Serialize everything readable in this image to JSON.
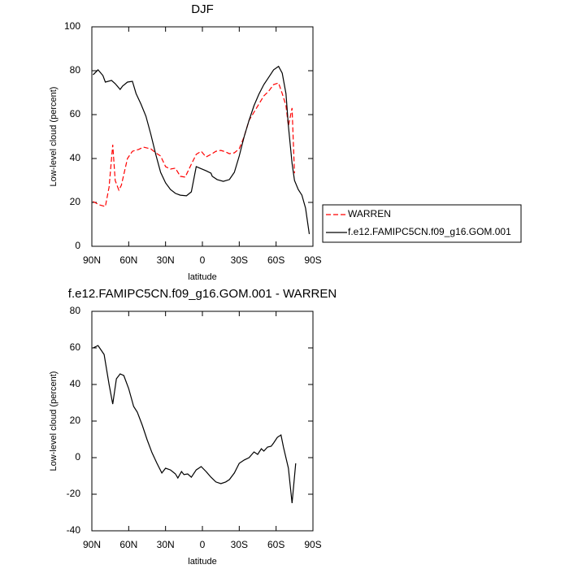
{
  "chart_data": [
    {
      "type": "line",
      "title": "DJF",
      "xlabel": "latitude",
      "ylabel": "Low-level cloud (percent)",
      "xlim": [
        90,
        -90
      ],
      "ylim": [
        0,
        100
      ],
      "xticks": [
        {
          "value": 90,
          "label": "90N"
        },
        {
          "value": 60,
          "label": "60N"
        },
        {
          "value": 30,
          "label": "30N"
        },
        0,
        {
          "value": -30,
          "label": "30S"
        },
        {
          "value": -60,
          "label": "60S"
        },
        {
          "value": -90,
          "label": "90S"
        }
      ],
      "yticks": [
        0,
        20,
        40,
        60,
        80,
        100
      ],
      "legend": "right",
      "series": [
        {
          "name": "WARREN",
          "color": "#ff0000",
          "line_style": "dashed",
          "x": [
            89,
            84,
            79,
            76,
            73,
            71,
            68,
            66,
            61,
            57,
            52,
            48,
            42,
            38,
            34,
            30,
            26,
            22,
            18,
            14,
            9,
            5,
            1,
            -3,
            -7,
            -11,
            -15,
            -19,
            -22,
            -26,
            -30,
            -34,
            -38,
            -42,
            -46,
            -50,
            -54,
            -58,
            -62,
            -65,
            -68,
            -70,
            -73,
            -75
          ],
          "values": [
            20.4,
            18.9,
            18.1,
            27,
            46.3,
            30,
            25.6,
            27.8,
            40,
            43.3,
            44.1,
            45.2,
            44.4,
            42.6,
            41.1,
            36.3,
            35.2,
            35.6,
            31.9,
            31.5,
            37.4,
            41.9,
            43.3,
            40.7,
            41.9,
            43.3,
            43.7,
            43,
            42.2,
            42.6,
            44.4,
            50,
            57.4,
            61.1,
            64.8,
            68.5,
            70.7,
            73.7,
            74.4,
            69.6,
            64.1,
            54.8,
            63,
            33.3
          ]
        },
        {
          "name": "f.e12.FAMIPC5CN.f09_g16.GOM.001",
          "color": "#000000",
          "line_style": "solid",
          "x": [
            89,
            85,
            81,
            79,
            74,
            71,
            67,
            65,
            61,
            57,
            54,
            50,
            46,
            42,
            38,
            34,
            30,
            26,
            22,
            18,
            13,
            9,
            5,
            2,
            -3,
            -7,
            -8,
            -12,
            -17,
            -22,
            -26,
            -30,
            -34,
            -38,
            -42,
            -46,
            -50,
            -54,
            -58,
            -62,
            -65,
            -68,
            -70,
            -73,
            -75,
            -78,
            -81,
            -84,
            -87
          ],
          "values": [
            78.1,
            80.4,
            77.8,
            74.8,
            75.6,
            74.1,
            71.5,
            73,
            74.8,
            75.2,
            69.6,
            64.8,
            59.3,
            51.1,
            41.9,
            33.7,
            28.9,
            25.9,
            24.1,
            23.3,
            23,
            24.8,
            36.3,
            35.6,
            34.4,
            33.3,
            31.9,
            30.4,
            29.6,
            30.4,
            33.7,
            41.1,
            50,
            57.4,
            64.1,
            69.3,
            73.7,
            77,
            80.4,
            82,
            78.9,
            69.6,
            54.8,
            37.8,
            30,
            25.9,
            23.3,
            17.4,
            5.6
          ]
        }
      ]
    },
    {
      "type": "line",
      "title": "f.e12.FAMIPC5CN.f09_g16.GOM.001 - WARREN",
      "xlabel": "latitude",
      "ylabel": "Low-level cloud (percent)",
      "xlim": [
        90,
        -90
      ],
      "ylim": [
        -40,
        80
      ],
      "xticks": [
        {
          "value": 90,
          "label": "90N"
        },
        {
          "value": 60,
          "label": "60N"
        },
        {
          "value": 30,
          "label": "30N"
        },
        0,
        {
          "value": -30,
          "label": "30S"
        },
        {
          "value": -60,
          "label": "60S"
        },
        {
          "value": -90,
          "label": "90S"
        }
      ],
      "yticks": [
        -40,
        -20,
        0,
        20,
        40,
        60,
        80
      ],
      "series": [
        {
          "color": "#000000",
          "line_style": "solid",
          "x": [
            89,
            85,
            80,
            76,
            73,
            70,
            67,
            64,
            60,
            56,
            53,
            49,
            45,
            41,
            37,
            33,
            30,
            26,
            22,
            20,
            17,
            15,
            12,
            9,
            5,
            1,
            -3,
            -7,
            -11,
            -15,
            -19,
            -22,
            -26,
            -30,
            -34,
            -38,
            -42,
            -45,
            -48,
            -50,
            -53,
            -56,
            -58,
            -61,
            -64,
            -66,
            -70,
            -73,
            -76
          ],
          "values": [
            60,
            61.3,
            56.4,
            40,
            29.3,
            43.1,
            45.8,
            44.9,
            37.8,
            28,
            24.9,
            17.8,
            9.8,
            2.7,
            -3.1,
            -8.4,
            -5.8,
            -6.7,
            -8.9,
            -11.1,
            -7.6,
            -9.3,
            -8.9,
            -10.7,
            -6.7,
            -4.9,
            -7.6,
            -10.7,
            -13.3,
            -14.2,
            -13.3,
            -12,
            -8.4,
            -3.1,
            -1.3,
            0,
            3.1,
            1.8,
            4.9,
            3.6,
            5.8,
            6.2,
            8,
            11.1,
            12.4,
            5.8,
            -5.8,
            -24.9,
            -3.1
          ]
        }
      ]
    }
  ]
}
